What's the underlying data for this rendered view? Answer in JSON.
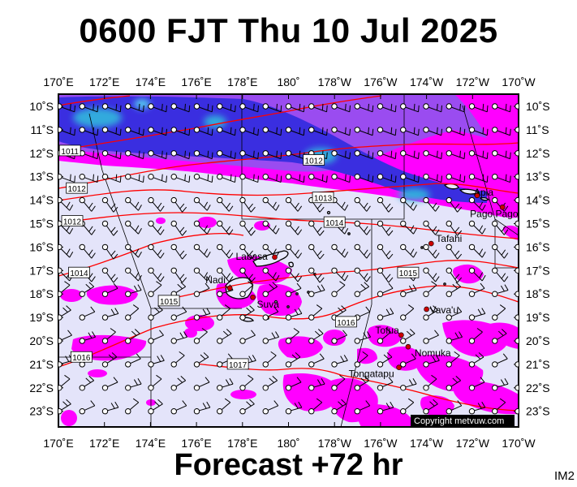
{
  "title": "0600 FJT Thu 10 Jul 2025",
  "footer": "Forecast +72 hr",
  "chart_code": "IM2",
  "copyright": "Copyright metvuw.com",
  "colors": {
    "background": "#e4e4fa",
    "rain_light": "#ff00ff",
    "rain_mid": "#8833ee",
    "rain_heavy": "#2222dd",
    "rain_core": "#33aadd",
    "isobar": "#ff0000",
    "barb": "#000000",
    "town": "#cc0000"
  },
  "lon_labels": [
    "170˚E",
    "172˚E",
    "174˚E",
    "176˚E",
    "178˚E",
    "180˚",
    "178˚W",
    "176˚W",
    "174˚W",
    "172˚W",
    "170˚W"
  ],
  "lat_labels": [
    "10˚S",
    "11˚S",
    "12˚S",
    "13˚S",
    "14˚S",
    "15˚S",
    "16˚S",
    "17˚S",
    "18˚S",
    "19˚S",
    "20˚S",
    "21˚S",
    "22˚S",
    "23˚S"
  ],
  "isobar_labels": [
    {
      "text": "1011",
      "lon": 170.5,
      "lat": -11.9
    },
    {
      "text": "1012",
      "lon": 170.8,
      "lat": -13.5
    },
    {
      "text": "1012",
      "lon": 170.6,
      "lat": -14.9
    },
    {
      "text": "1012",
      "lon": 181.1,
      "lat": -12.3
    },
    {
      "text": "1013",
      "lon": 181.5,
      "lat": -13.9
    },
    {
      "text": "1014",
      "lon": 182.0,
      "lat": -14.95
    },
    {
      "text": "1014",
      "lon": 170.9,
      "lat": -17.1
    },
    {
      "text": "1015",
      "lon": 174.8,
      "lat": -18.3
    },
    {
      "text": "1015",
      "lon": 185.2,
      "lat": -17.1
    },
    {
      "text": "1016",
      "lon": 182.5,
      "lat": -19.2
    },
    {
      "text": "1016",
      "lon": 171.0,
      "lat": -20.7
    },
    {
      "text": "1017",
      "lon": 177.8,
      "lat": -21.0
    }
  ],
  "places": [
    {
      "name": "Apia",
      "lon": 188.2,
      "lat": -13.8
    },
    {
      "name": "Pago Pago",
      "lon": 189.3,
      "lat": -14.3
    },
    {
      "name": "Tafahi",
      "lon": 186.2,
      "lat": -15.85
    },
    {
      "name": "Labasa",
      "lon": 179.4,
      "lat": -16.43
    },
    {
      "name": "Nadi",
      "lon": 177.45,
      "lat": -17.75
    },
    {
      "name": "Suva",
      "lon": 178.45,
      "lat": -18.14
    },
    {
      "name": "Vava'u",
      "lon": 186.0,
      "lat": -18.65
    },
    {
      "name": "Tofua",
      "lon": 184.9,
      "lat": -19.75
    },
    {
      "name": "Nomuka",
      "lon": 185.2,
      "lat": -20.25
    },
    {
      "name": "Tongatapu",
      "lon": 184.8,
      "lat": -21.13
    }
  ]
}
